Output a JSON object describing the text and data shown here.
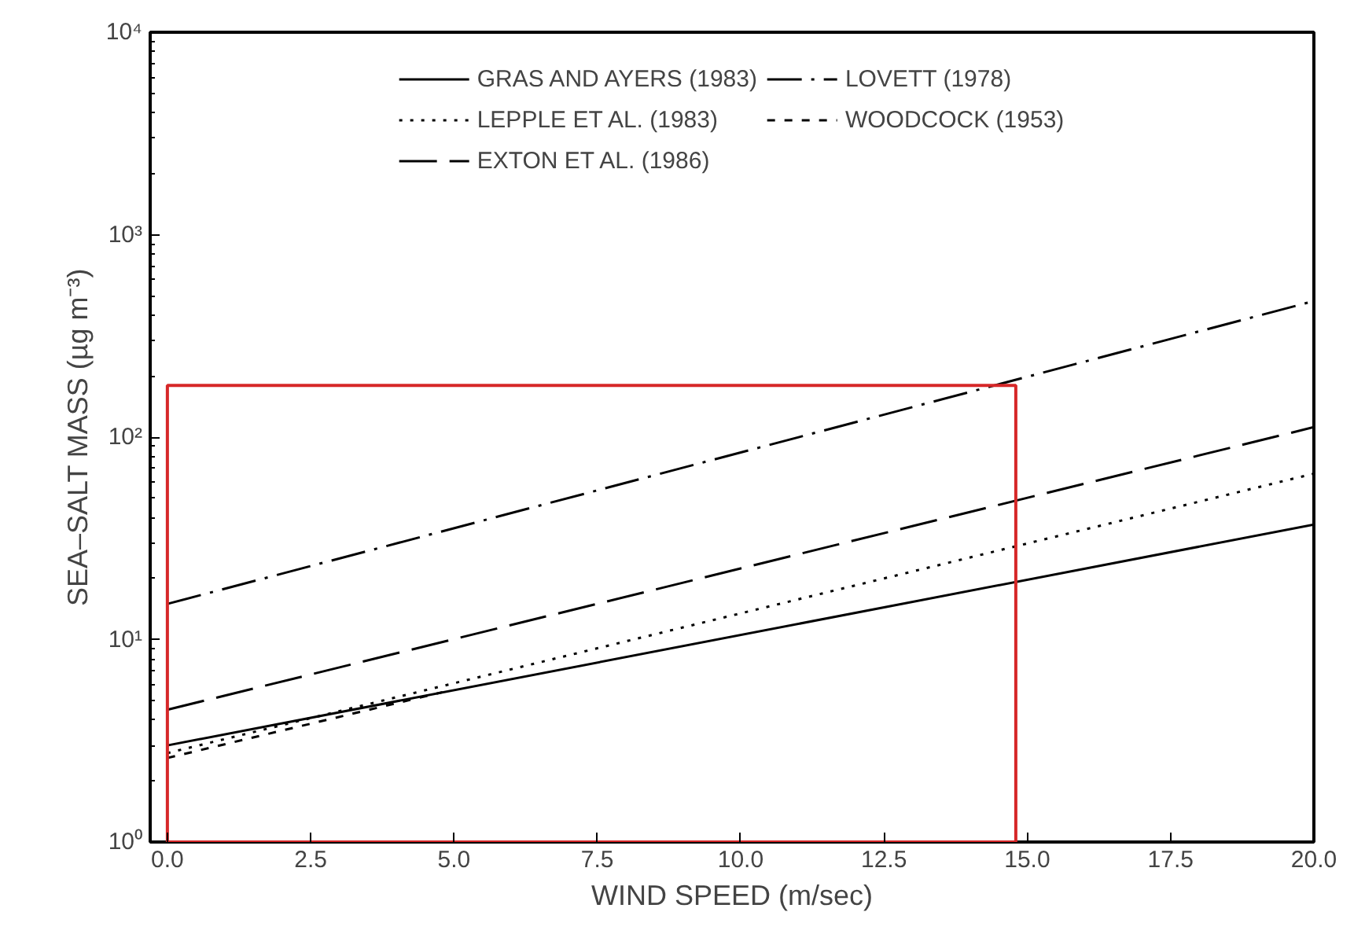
{
  "chart_data": {
    "type": "line",
    "xlabel": "WIND SPEED (m/sec)",
    "ylabel": "SEA–SALT MASS (µg m⁻³)",
    "log": "y",
    "xlim": [
      -0.3,
      20
    ],
    "ylim": [
      1,
      10000
    ],
    "xticks": [
      {
        "value": 0,
        "label": "0.0"
      },
      {
        "value": 2.5,
        "label": "2.5"
      },
      {
        "value": 5,
        "label": "5.0"
      },
      {
        "value": 7.5,
        "label": "7.5"
      },
      {
        "value": 10,
        "label": "10.0"
      },
      {
        "value": 12.5,
        "label": "12.5"
      },
      {
        "value": 15,
        "label": "15.0"
      },
      {
        "value": 17.5,
        "label": "17.5"
      },
      {
        "value": 20,
        "label": "20.0"
      }
    ],
    "yticks": [
      {
        "value": 1,
        "label": "10⁰"
      },
      {
        "value": 10,
        "label": "10¹"
      },
      {
        "value": 100,
        "label": "10²"
      },
      {
        "value": 1000,
        "label": "10³"
      },
      {
        "value": 10000,
        "label": "10⁴"
      }
    ],
    "grid": false,
    "legend": "top",
    "marker": "none",
    "series": [
      {
        "name": "GRAS AND AYERS (1983)",
        "color": "#000000",
        "line_style": "solid",
        "x": [
          0,
          20
        ],
        "values": [
          3.0,
          37
        ]
      },
      {
        "name": "LEPPLE ET AL. (1983)",
        "color": "#000000",
        "line_style": "dotted",
        "x": [
          0,
          20
        ],
        "values": [
          2.75,
          66
        ]
      },
      {
        "name": "EXTON ET AL. (1986)",
        "color": "#000000",
        "line_style": "longdash",
        "x": [
          0,
          20
        ],
        "values": [
          4.5,
          112
        ]
      },
      {
        "name": "LOVETT (1978)",
        "color": "#000000",
        "line_style": "dashdot",
        "x": [
          0,
          20
        ],
        "values": [
          15,
          470
        ]
      },
      {
        "name": "WOODCOCK (1953)",
        "color": "#000000",
        "line_style": "dashed",
        "x": [
          0,
          4.8
        ],
        "values": [
          2.6,
          5.5
        ]
      }
    ]
  }
}
